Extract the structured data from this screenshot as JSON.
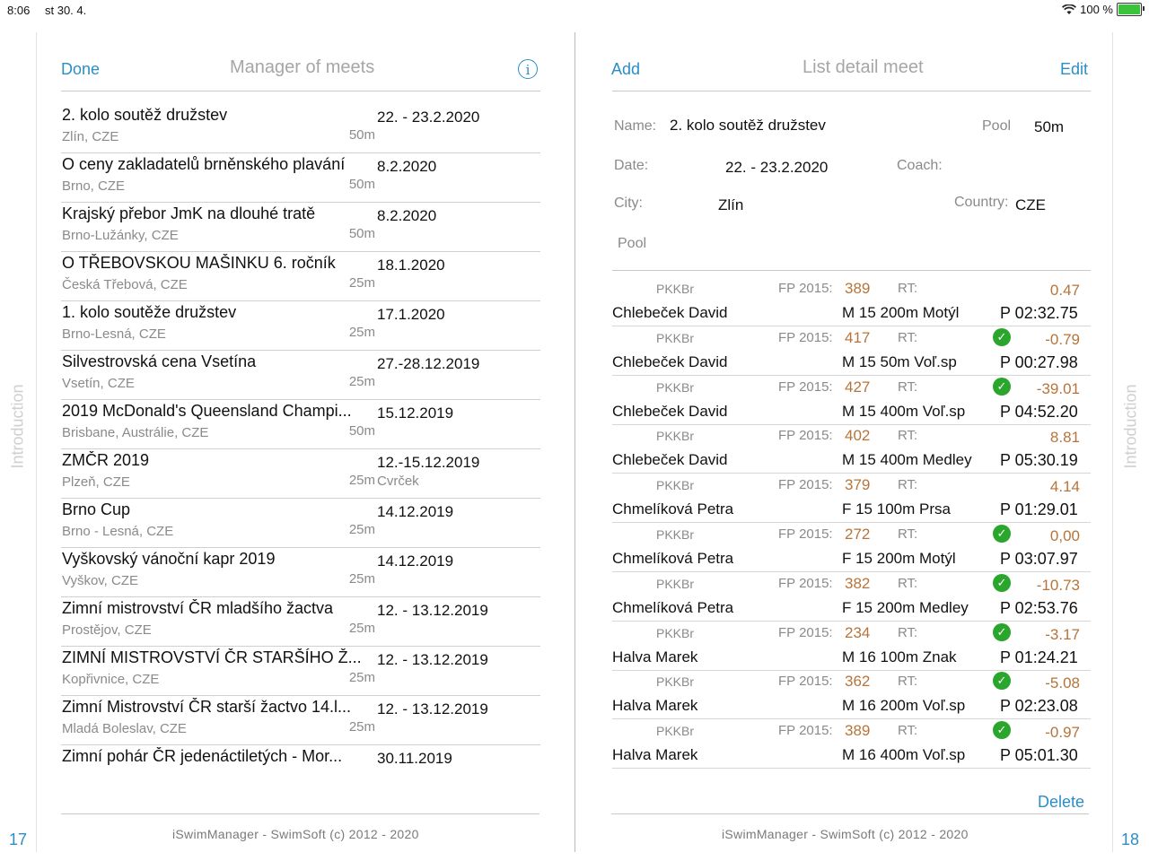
{
  "status": {
    "time": "8:06",
    "date": "st 30. 4.",
    "battery": "100 %",
    "battery_level": 1.0
  },
  "side": {
    "left_tab": "Introduction",
    "right_tab": "Introduction",
    "left_page": "17",
    "right_page": "18"
  },
  "left": {
    "done_label": "Done",
    "title": "Manager of meets",
    "info_icon": "i",
    "meets": [
      {
        "name": "2. kolo soutěž družstev",
        "city": "Zlín, CZE",
        "pool": "50m",
        "date": "22. - 23.2.2020",
        "coach": ""
      },
      {
        "name": "O ceny zakladatelů brněnského plavání",
        "city": "Brno, CZE",
        "pool": "50m",
        "date": "8.2.2020",
        "coach": ""
      },
      {
        "name": "Krajský přebor JmK na dlouhé tratě",
        "city": "Brno-Lužánky, CZE",
        "pool": "50m",
        "date": "8.2.2020",
        "coach": ""
      },
      {
        "name": "O TŘEBOVSKOU MAŠINKU 6. ročník",
        "city": "Česká Třebová, CZE",
        "pool": "25m",
        "date": "18.1.2020",
        "coach": ""
      },
      {
        "name": "1. kolo soutěže družstev",
        "city": "Brno-Lesná, CZE",
        "pool": "25m",
        "date": "17.1.2020",
        "coach": ""
      },
      {
        "name": "Silvestrovská cena Vsetína",
        "city": "Vsetín, CZE",
        "pool": "25m",
        "date": "27.-28.12.2019",
        "coach": ""
      },
      {
        "name": "2019 McDonald's Queensland Champi...",
        "city": "Brisbane, Austrálie, CZE",
        "pool": "50m",
        "date": "15.12.2019",
        "coach": ""
      },
      {
        "name": "ZMČR 2019",
        "city": "Plzeň, CZE",
        "pool": "25m",
        "date": "12.-15.12.2019",
        "coach": "Cvrček"
      },
      {
        "name": "Brno Cup",
        "city": "Brno - Lesná, CZE",
        "pool": "25m",
        "date": "14.12.2019",
        "coach": ""
      },
      {
        "name": "Vyškovský vánoční kapr 2019",
        "city": "Vyškov, CZE",
        "pool": "25m",
        "date": "14.12.2019",
        "coach": ""
      },
      {
        "name": "Zimní mistrovství ČR mladšího žactva",
        "city": "Prostějov, CZE",
        "pool": "25m",
        "date": "12. - 13.12.2019",
        "coach": ""
      },
      {
        "name": "ZIMNÍ MISTROVSTVÍ ČR STARŠÍHO Ž...",
        "city": "Kopřivnice, CZE",
        "pool": "25m",
        "date": "12. - 13.12.2019",
        "coach": ""
      },
      {
        "name": "Zimní Mistrovství ČR starší žactvo 14.l...",
        "city": "Mladá Boleslav, CZE",
        "pool": "25m",
        "date": "12. - 13.12.2019",
        "coach": ""
      },
      {
        "name": "Zimní pohár ČR jedenáctiletých - Mor...",
        "city": "",
        "pool": "",
        "date": "30.11.2019",
        "coach": ""
      }
    ],
    "footer": "iSwimManager - SwimSoft (c) 2012 - 2020"
  },
  "right": {
    "add_label": "Add",
    "title": "List detail meet",
    "edit_label": "Edit",
    "detail": {
      "name_label": "Name:",
      "name_value": "2. kolo soutěž družstev",
      "pool_label": "Pool",
      "pool_value": "50m",
      "date_label": "Date:",
      "date_value": "22. - 23.2.2020",
      "coach_label": "Coach:",
      "city_label": "City:",
      "city_value": "Zlín",
      "country_label": "Country:",
      "country_value": "CZE",
      "pool2_label": "Pool"
    },
    "results": [
      {
        "club": "PKKBr",
        "fp_label": "FP 2015:",
        "fp": "389",
        "rt": "RT:",
        "check": false,
        "diff": "0.47",
        "swimmer": "Chlebeček David",
        "event": "M 15 200m Motýl",
        "time": "P 02:32.75"
      },
      {
        "club": "PKKBr",
        "fp_label": "FP 2015:",
        "fp": "417",
        "rt": "RT:",
        "check": true,
        "diff": "-0.79",
        "swimmer": "Chlebeček David",
        "event": "M 15 50m Voľ.sp",
        "time": "P 00:27.98"
      },
      {
        "club": "PKKBr",
        "fp_label": "FP 2015:",
        "fp": "427",
        "rt": "RT:",
        "check": true,
        "diff": "-39.01",
        "swimmer": "Chlebeček David",
        "event": "M 15 400m Voľ.sp",
        "time": "P 04:52.20"
      },
      {
        "club": "PKKBr",
        "fp_label": "FP 2015:",
        "fp": "402",
        "rt": "RT:",
        "check": false,
        "diff": "8.81",
        "swimmer": "Chlebeček David",
        "event": "M 15 400m Medley",
        "time": "P 05:30.19"
      },
      {
        "club": "PKKBr",
        "fp_label": "FP 2015:",
        "fp": "379",
        "rt": "RT:",
        "check": false,
        "diff": "4.14",
        "swimmer": "Chmelíková Petra",
        "event": "F 15  100m Prsa",
        "time": "P  01:29.01"
      },
      {
        "club": "PKKBr",
        "fp_label": "FP 2015:",
        "fp": "272",
        "rt": "RT:",
        "check": true,
        "diff": "0,00",
        "swimmer": "Chmelíková Petra",
        "event": "F 15  200m Motýl",
        "time": "P 03:07.97"
      },
      {
        "club": "PKKBr",
        "fp_label": "FP 2015:",
        "fp": "382",
        "rt": "RT:",
        "check": true,
        "diff": "-10.73",
        "swimmer": "Chmelíková Petra",
        "event": "F 15  200m Medley",
        "time": "P 02:53.76"
      },
      {
        "club": "PKKBr",
        "fp_label": "FP 2015:",
        "fp": "234",
        "rt": "RT:",
        "check": true,
        "diff": "-3.17",
        "swimmer": "Halva Marek",
        "event": "M 16 100m Znak",
        "time": "P  01:24.21"
      },
      {
        "club": "PKKBr",
        "fp_label": "FP 2015:",
        "fp": "362",
        "rt": "RT:",
        "check": true,
        "diff": "-5.08",
        "swimmer": "Halva Marek",
        "event": "M 16 200m Voľ.sp",
        "time": "P 02:23.08"
      },
      {
        "club": "PKKBr",
        "fp_label": "FP 2015:",
        "fp": "389",
        "rt": "RT:",
        "check": true,
        "diff": "-0.97",
        "swimmer": "Halva Marek",
        "event": "M 16 400m Voľ.sp",
        "time": "P 05:01.30"
      }
    ],
    "delete_label": "Delete",
    "footer": "iSwimManager - SwimSoft (c) 2012 - 2020"
  }
}
